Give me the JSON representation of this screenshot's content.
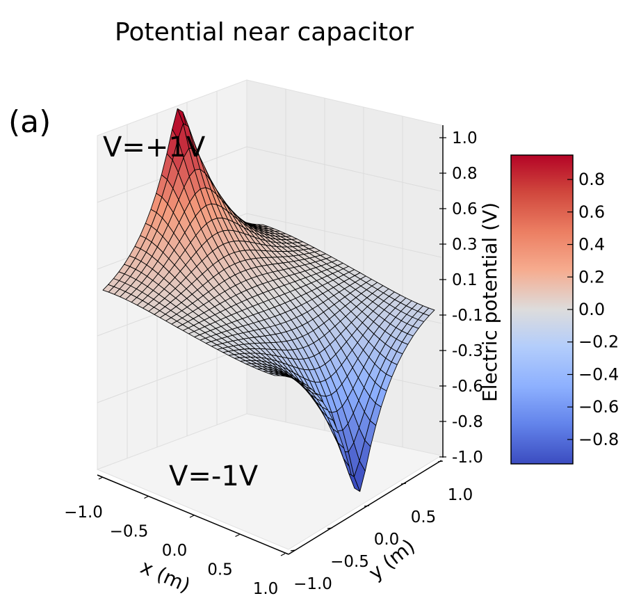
{
  "chart_data": {
    "type": "surface",
    "title": "Potential near capacitor",
    "panel_label": "(a)",
    "xlabel": "x (m)",
    "ylabel": "y (m)",
    "zlabel": "Electric potential (V)",
    "xlim": [
      -1.0,
      1.0
    ],
    "ylim": [
      -1.0,
      1.0
    ],
    "zlim": [
      -1.0,
      1.0
    ],
    "x_ticks": [
      "−1.0",
      "−0.5",
      "0.0",
      "0.5",
      "1.0"
    ],
    "y_ticks": [
      "−1.0",
      "−0.5",
      "0.0",
      "0.5",
      "1.0"
    ],
    "z_ticks": [
      "-1.0",
      "-0.8",
      "-0.6",
      "-0.3",
      "-0.1",
      "0.1",
      "0.3",
      "0.6",
      "0.8",
      "1.0"
    ],
    "colormap": "coolwarm",
    "colorbar_ticks": [
      "0.8",
      "0.6",
      "0.4",
      "0.2",
      "0.0",
      "−0.2",
      "−0.4",
      "−0.6",
      "−0.8"
    ],
    "colorbar_range": [
      -0.95,
      0.95
    ],
    "annotations": [
      "V=+1V",
      "V=-1V"
    ],
    "grid": true,
    "surface": {
      "description_values": "Potential V(x,y) of two plates: +1 V near x=-1..-0.7 edge strip at y≈0, -1 V at opposite edge",
      "grid_size": 30,
      "plate_positive_value": 1.0,
      "plate_negative_value": -1.0
    }
  },
  "colors": {
    "coolwarm_low": "#3b4cc0",
    "coolwarm_mid": "#dddddd",
    "coolwarm_high": "#b40426",
    "pane": "#f2f2f2",
    "grid": "#e0e0e0",
    "mesh": "#000000"
  }
}
